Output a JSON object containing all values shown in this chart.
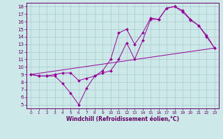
{
  "line1_x": [
    0,
    1,
    2,
    3,
    4,
    5,
    6,
    7,
    8,
    9,
    10,
    11,
    12,
    13,
    14,
    15,
    16,
    17,
    18,
    19,
    20,
    21,
    22,
    23
  ],
  "line1_y": [
    9.0,
    8.8,
    8.8,
    8.8,
    7.8,
    6.5,
    5.0,
    7.2,
    8.8,
    9.5,
    11.0,
    14.5,
    15.0,
    13.0,
    14.5,
    16.5,
    16.3,
    17.8,
    18.0,
    17.5,
    16.3,
    15.5,
    14.0,
    12.5
  ],
  "line2_x": [
    0,
    1,
    2,
    3,
    4,
    5,
    6,
    7,
    8,
    9,
    10,
    11,
    12,
    13,
    14,
    15,
    16,
    17,
    18,
    19,
    20,
    21,
    22,
    23
  ],
  "line2_y": [
    9.0,
    8.8,
    8.8,
    9.0,
    9.2,
    9.2,
    8.2,
    8.5,
    8.8,
    9.2,
    9.5,
    11.0,
    13.2,
    11.0,
    13.5,
    16.3,
    16.3,
    17.8,
    18.0,
    17.3,
    16.2,
    15.5,
    14.2,
    12.5
  ],
  "line3_x": [
    0,
    23
  ],
  "line3_y": [
    9.0,
    12.5
  ],
  "color": "#990099",
  "marker": "D",
  "marker_size": 2,
  "xlabel": "Windchill (Refroidissement éolien,°C)",
  "xlim": [
    -0.5,
    23.5
  ],
  "ylim": [
    4.5,
    18.5
  ],
  "yticks": [
    5,
    6,
    7,
    8,
    9,
    10,
    11,
    12,
    13,
    14,
    15,
    16,
    17,
    18
  ],
  "xticks": [
    0,
    1,
    2,
    3,
    4,
    5,
    6,
    7,
    8,
    9,
    10,
    11,
    12,
    13,
    14,
    15,
    16,
    17,
    18,
    19,
    20,
    21,
    22,
    23
  ],
  "bg_color": "#cce8e8",
  "grid_color": "#aacccc",
  "label_color": "#660066",
  "tick_color": "#660066",
  "axis_color": "#660066"
}
